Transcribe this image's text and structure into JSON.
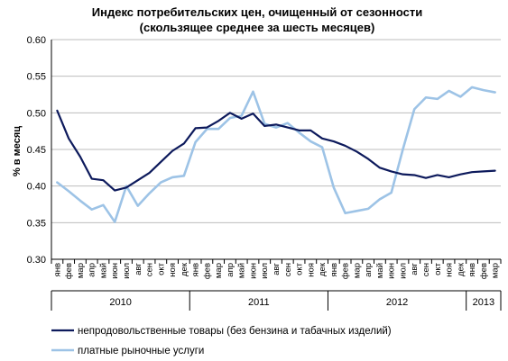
{
  "chart_data": {
    "type": "line",
    "title_line1": "Индекс потребительских цен, очищенный от сезонности",
    "title_line2": "(скользящее среднее за шесть месяцев)",
    "ylabel": "% в месяц",
    "xlabel": "",
    "ylim": [
      0.3,
      0.6
    ],
    "yticks": [
      "0.30",
      "0.35",
      "0.40",
      "0.45",
      "0.50",
      "0.55",
      "0.60"
    ],
    "grid": true,
    "legend_position": "bottom",
    "categories": [
      "янв",
      "фев",
      "мар",
      "апр",
      "май",
      "июн",
      "июл",
      "авг",
      "сен",
      "окт",
      "ноя",
      "дек",
      "янв",
      "фев",
      "мар",
      "апр",
      "май",
      "июн",
      "июл",
      "авг",
      "сен",
      "окт",
      "ноя",
      "дек",
      "янв",
      "фев",
      "мар",
      "апр",
      "май",
      "июн",
      "июл",
      "авг",
      "сен",
      "окт",
      "ноя",
      "дек",
      "янв",
      "фев",
      "мар"
    ],
    "years": [
      {
        "label": "2010",
        "start": 0,
        "end": 11
      },
      {
        "label": "2011",
        "start": 12,
        "end": 23
      },
      {
        "label": "2012",
        "start": 24,
        "end": 35
      },
      {
        "label": "2013",
        "start": 36,
        "end": 38
      }
    ],
    "series": [
      {
        "name": "непродовольственные товары (без бензина  и табачных изделий)",
        "color": "#0d1a5c",
        "values": [
          0.503,
          0.465,
          0.44,
          0.41,
          0.408,
          0.394,
          0.398,
          0.408,
          0.418,
          0.433,
          0.448,
          0.458,
          0.479,
          0.48,
          0.489,
          0.5,
          0.492,
          0.499,
          0.482,
          0.484,
          0.48,
          0.476,
          0.476,
          0.465,
          0.461,
          0.455,
          0.447,
          0.437,
          0.425,
          0.42,
          0.416,
          0.415,
          0.411,
          0.415,
          0.412,
          0.416,
          0.419,
          0.42,
          0.421
        ]
      },
      {
        "name": "платные рыночные услуги",
        "color": "#9dc3e6",
        "values": [
          0.405,
          0.393,
          0.38,
          0.368,
          0.374,
          0.351,
          0.4,
          0.373,
          0.39,
          0.405,
          0.412,
          0.414,
          0.46,
          0.478,
          0.478,
          0.493,
          0.496,
          0.529,
          0.485,
          0.48,
          0.486,
          0.473,
          0.461,
          0.453,
          0.398,
          0.363,
          0.366,
          0.369,
          0.382,
          0.391,
          0.45,
          0.505,
          0.521,
          0.519,
          0.53,
          0.522,
          0.535,
          0.531,
          0.528
        ]
      }
    ]
  }
}
